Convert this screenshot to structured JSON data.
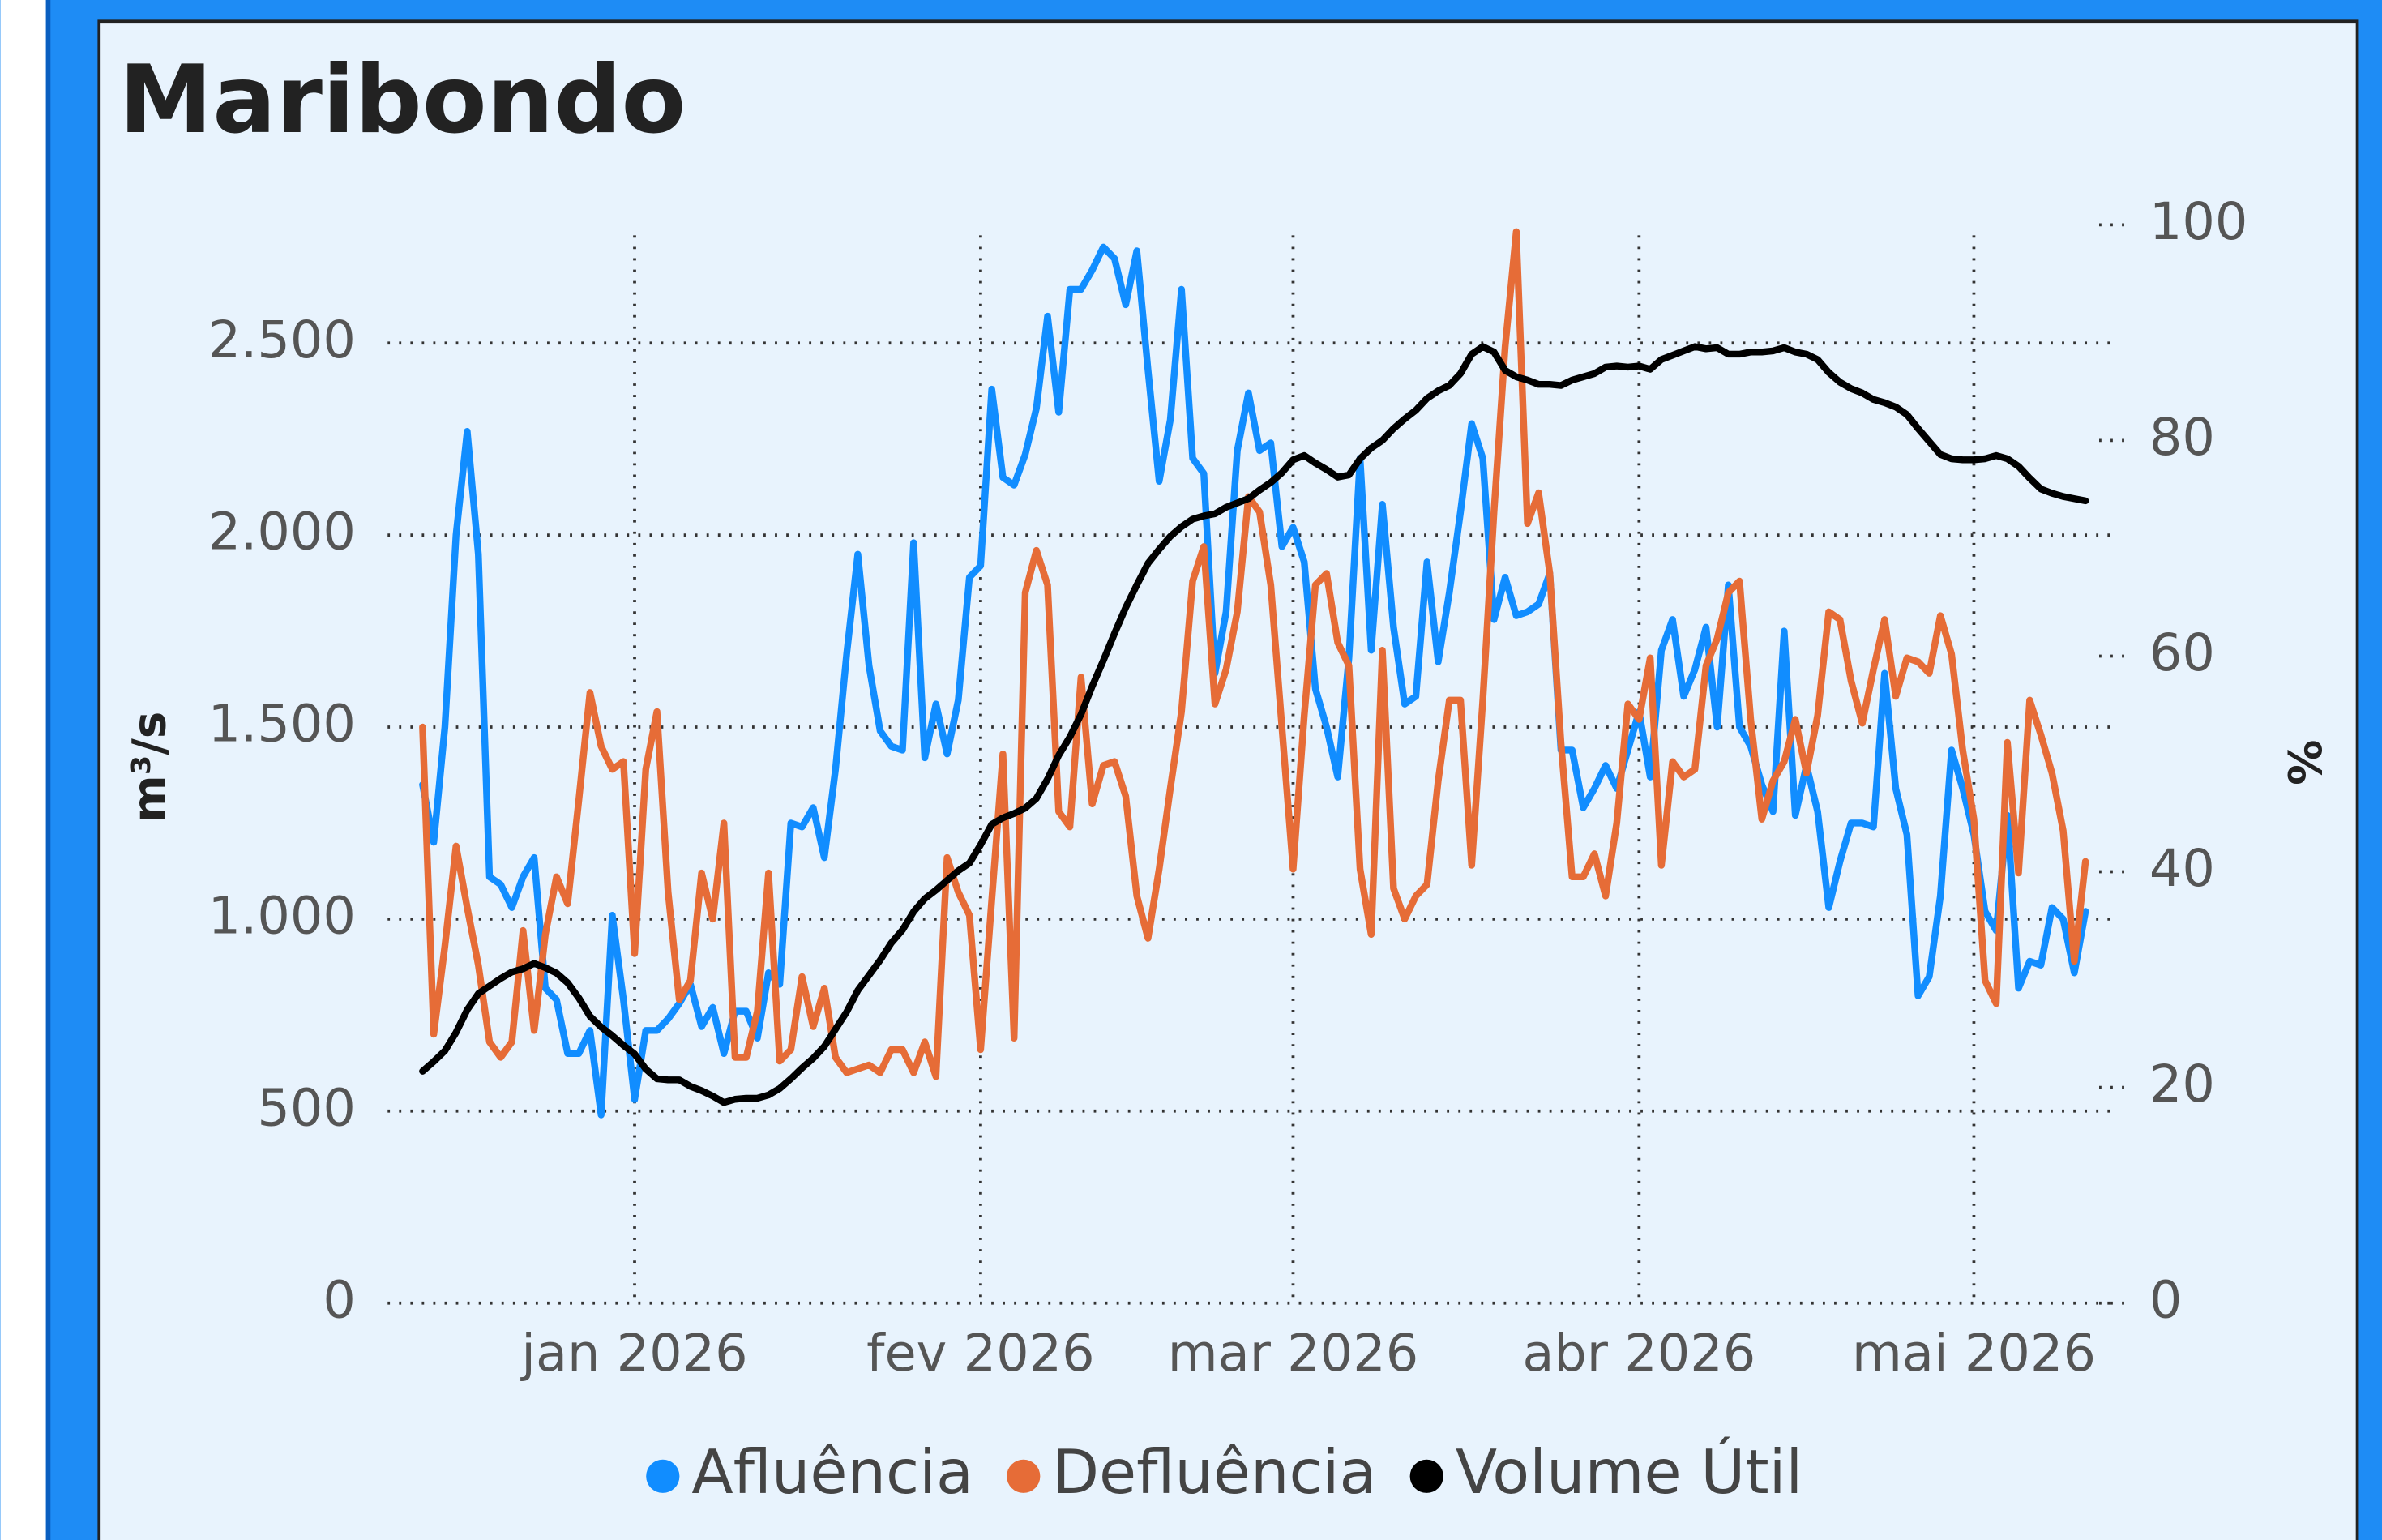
{
  "chart_data": {
    "type": "line",
    "title": "Maribondo",
    "y_label": "m³/s",
    "y2_label": "%",
    "categories": [
      null,
      null,
      null,
      null,
      null,
      null,
      null,
      null,
      null,
      null,
      null,
      null,
      null,
      null,
      null,
      null,
      null,
      null,
      null,
      "jan 2026",
      null,
      null,
      null,
      null,
      null,
      null,
      null,
      null,
      null,
      null,
      null,
      null,
      null,
      null,
      null,
      null,
      null,
      null,
      null,
      null,
      null,
      null,
      null,
      null,
      null,
      null,
      null,
      null,
      null,
      null,
      "fev 2026",
      null,
      null,
      null,
      null,
      null,
      null,
      null,
      null,
      null,
      null,
      null,
      null,
      null,
      null,
      null,
      null,
      null,
      null,
      null,
      null,
      null,
      null,
      null,
      null,
      null,
      null,
      null,
      "mar 2026",
      null,
      null,
      null,
      null,
      null,
      null,
      null,
      null,
      null,
      null,
      null,
      null,
      null,
      null,
      null,
      null,
      null,
      null,
      null,
      null,
      null,
      null,
      null,
      null,
      null,
      null,
      null,
      null,
      null,
      null,
      "abr 2026",
      null,
      null,
      null,
      null,
      null,
      null,
      null,
      null,
      null,
      null,
      null,
      null,
      null,
      null,
      null,
      null,
      null,
      null,
      null,
      null,
      null,
      null,
      null,
      null,
      null,
      null,
      null,
      null,
      null,
      "mai 2026",
      null,
      null,
      null,
      null,
      null,
      null,
      null,
      null,
      null,
      null
    ],
    "series": [
      {
        "name": "Afluência",
        "color": "#118dff",
        "values": [
          1350,
          1200,
          1500,
          2000,
          2270,
          1950,
          1110,
          1090,
          1030,
          1110,
          1160,
          820,
          790,
          650,
          650,
          710,
          490,
          1010,
          790,
          530,
          710,
          710,
          740,
          780,
          830,
          720,
          770,
          650,
          760,
          760,
          690,
          860,
          830,
          1250,
          1240,
          1290,
          1160,
          1390,
          1690,
          1950,
          1660,
          1490,
          1450,
          1440,
          1980,
          1420,
          1560,
          1430,
          1570,
          1890,
          1920,
          2380,
          2150,
          2130,
          2210,
          2330,
          2570,
          2320,
          2640,
          2640,
          2690,
          2750,
          2720,
          2600,
          2740,
          2430,
          2140,
          2300,
          2640,
          2200,
          2160,
          1640,
          1800,
          2220,
          2370,
          2220,
          2240,
          1970,
          2020,
          1930,
          1600,
          1500,
          1370,
          1680,
          2200,
          1700,
          2080,
          1760,
          1560,
          1580,
          1930,
          1670,
          1850,
          2060,
          2290,
          2200,
          1780,
          1890,
          1790,
          1800,
          1820,
          1900,
          1440,
          1440,
          1290,
          1340,
          1400,
          1340,
          1440,
          1540,
          1370,
          1700,
          1780,
          1580,
          1650,
          1760,
          1500,
          1870,
          1500,
          1450,
          1350,
          1280,
          1750,
          1270,
          1400,
          1280,
          1030,
          1150,
          1250,
          1250,
          1240,
          1640,
          1340,
          1220,
          800,
          850,
          1060,
          1440,
          1340,
          1220,
          1020,
          970,
          1270,
          820,
          890,
          880,
          1030,
          1000,
          860,
          1020
        ]
      },
      {
        "name": "Defluência",
        "color": "#e66c37",
        "values": [
          1500,
          700,
          930,
          1190,
          1030,
          880,
          680,
          640,
          680,
          970,
          710,
          960,
          1110,
          1040,
          1310,
          1590,
          1450,
          1390,
          1410,
          910,
          1390,
          1540,
          1070,
          790,
          840,
          1120,
          1000,
          1250,
          640,
          640,
          760,
          1120,
          630,
          660,
          850,
          720,
          820,
          640,
          600,
          610,
          620,
          600,
          660,
          660,
          600,
          680,
          590,
          1160,
          1070,
          1010,
          660,
          1050,
          1430,
          690,
          1850,
          1960,
          1870,
          1280,
          1240,
          1630,
          1300,
          1400,
          1410,
          1320,
          1060,
          950,
          1130,
          1340,
          1540,
          1880,
          1970,
          1560,
          1650,
          1800,
          2100,
          2060,
          1870,
          1500,
          1130,
          1530,
          1870,
          1900,
          1720,
          1660,
          1130,
          960,
          1700,
          1080,
          1000,
          1060,
          1090,
          1360,
          1570,
          1570,
          1140,
          1570,
          2060,
          2490,
          2790,
          2030,
          2110,
          1900,
          1460,
          1110,
          1110,
          1170,
          1060,
          1250,
          1560,
          1520,
          1680,
          1140,
          1410,
          1370,
          1390,
          1660,
          1730,
          1850,
          1880,
          1520,
          1260,
          1360,
          1410,
          1520,
          1380,
          1530,
          1800,
          1780,
          1620,
          1510,
          1650,
          1780,
          1580,
          1680,
          1670,
          1640,
          1790,
          1690,
          1440,
          1260,
          840,
          780,
          1460,
          1120,
          1570,
          1480,
          1380,
          1230,
          890,
          1150
        ]
      },
      {
        "name": "Volume Útil",
        "color": "#000000",
        "axis": "y2",
        "values": [
          21.5,
          22.4,
          23.4,
          25.1,
          27.2,
          28.7,
          29.4,
          30.1,
          30.7,
          31.0,
          31.5,
          31.1,
          30.6,
          29.7,
          28.3,
          26.6,
          25.6,
          24.8,
          23.9,
          23.1,
          21.7,
          20.8,
          20.7,
          20.7,
          20.1,
          19.7,
          19.2,
          18.6,
          18.9,
          19.0,
          19.0,
          19.3,
          19.9,
          20.8,
          21.8,
          22.7,
          23.8,
          25.4,
          27.0,
          29.0,
          30.4,
          31.8,
          33.4,
          34.6,
          36.3,
          37.5,
          38.3,
          39.2,
          40.1,
          40.8,
          42.5,
          44.4,
          45.0,
          45.4,
          45.9,
          46.8,
          48.6,
          50.8,
          52.5,
          54.6,
          57.2,
          59.6,
          62.1,
          64.5,
          66.6,
          68.6,
          69.9,
          71.1,
          72.0,
          72.7,
          73.0,
          73.2,
          73.8,
          74.2,
          74.6,
          75.4,
          76.1,
          77.0,
          78.2,
          78.6,
          77.9,
          77.3,
          76.6,
          76.8,
          78.3,
          79.3,
          80.0,
          81.1,
          82.0,
          82.8,
          83.9,
          84.6,
          85.1,
          86.2,
          88.0,
          88.7,
          88.2,
          86.5,
          85.9,
          85.6,
          85.2,
          85.2,
          85.1,
          85.6,
          85.9,
          86.2,
          86.8,
          86.9,
          86.8,
          86.9,
          86.6,
          87.5,
          87.9,
          88.3,
          88.7,
          88.5,
          88.6,
          88.0,
          88.0,
          88.2,
          88.2,
          88.3,
          88.6,
          88.2,
          88.0,
          87.5,
          86.3,
          85.4,
          84.8,
          84.4,
          83.8,
          83.5,
          83.1,
          82.4,
          81.1,
          79.9,
          78.7,
          78.3,
          78.2,
          78.2,
          78.3,
          78.6,
          78.3,
          77.6,
          76.5,
          75.5,
          75.1,
          74.8,
          74.6,
          74.4
        ]
      }
    ],
    "ylim": [
      0,
      2808
    ],
    "yticks": [
      0,
      500,
      {
        "value": 1000,
        "label": "1.000"
      },
      {
        "value": 1500,
        "label": "1.500"
      },
      {
        "value": 2000,
        "label": "2.000"
      },
      {
        "value": 2500,
        "label": "2.500"
      }
    ],
    "y2lim": [
      0,
      100
    ],
    "y2ticks": [
      0,
      20,
      40,
      60,
      80,
      100
    ],
    "grid": true,
    "legend": "bottom"
  }
}
